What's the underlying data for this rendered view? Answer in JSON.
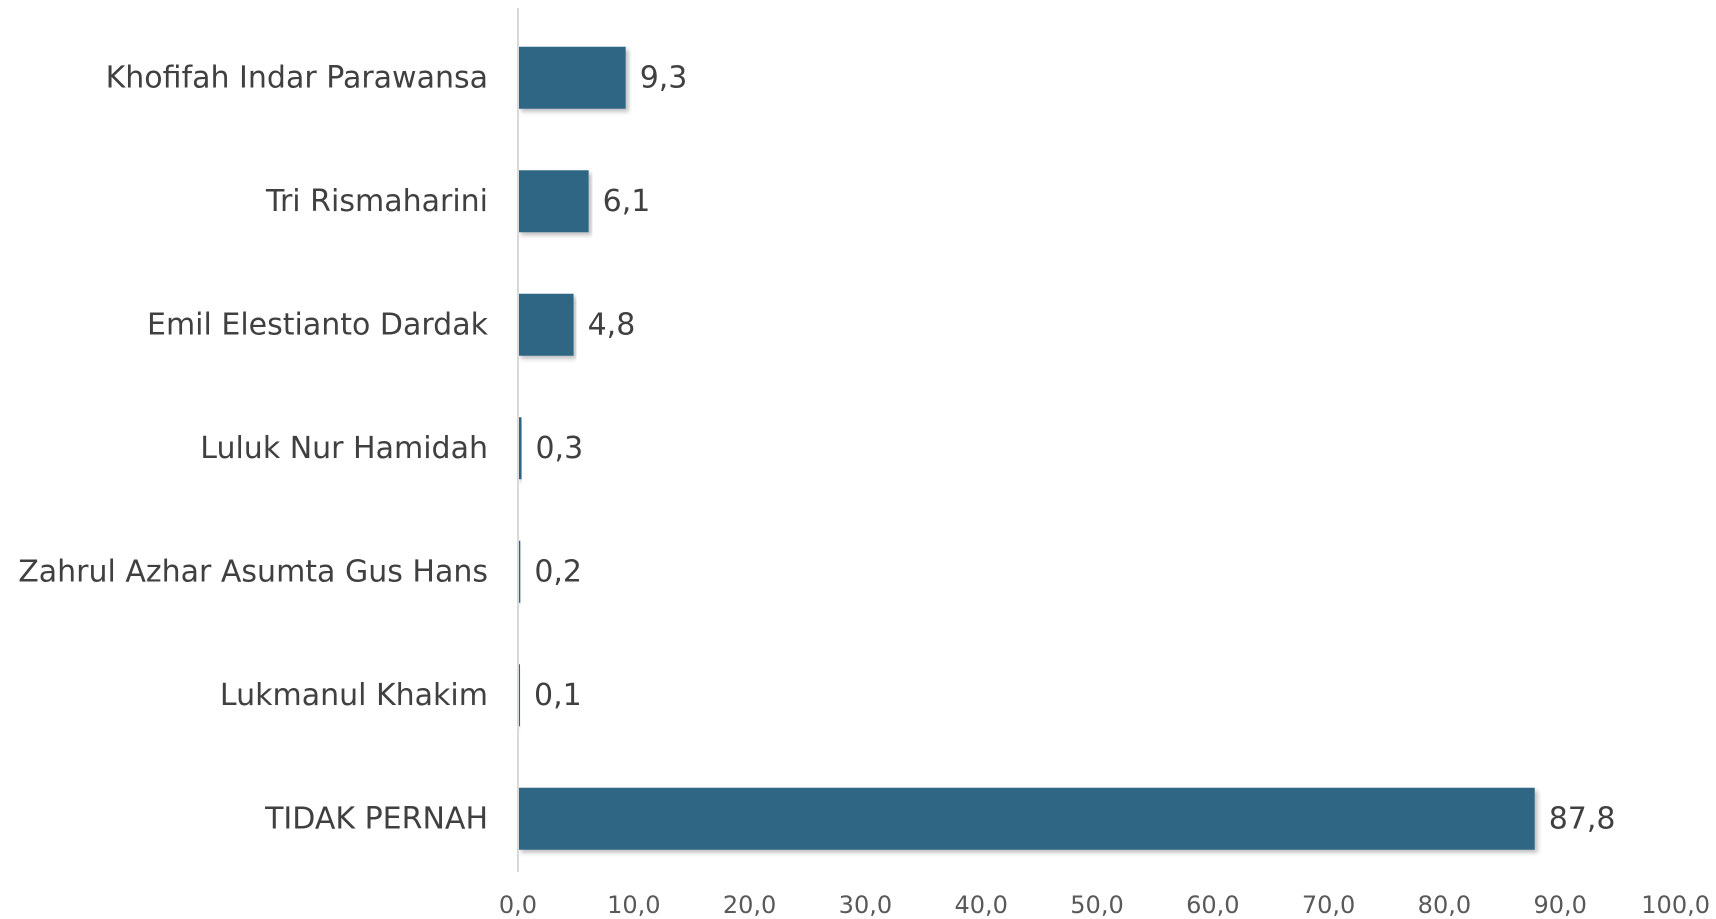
{
  "chart_data": {
    "type": "bar",
    "orientation": "horizontal",
    "title": "",
    "xlabel": "",
    "ylabel": "",
    "categories": [
      "Khofifah Indar Parawansa",
      "Tri Rismaharini",
      "Emil Elestianto Dardak",
      "Luluk Nur Hamidah",
      "Zahrul Azhar Asumta Gus Hans",
      "Lukmanul Khakim",
      "TIDAK PERNAH"
    ],
    "values": [
      9.3,
      6.1,
      4.8,
      0.3,
      0.2,
      0.1,
      87.8
    ],
    "value_labels": [
      "9,3",
      "6,1",
      "4,8",
      "0,3",
      "0,2",
      "0,1",
      "87,8"
    ],
    "xlim": [
      0,
      100
    ],
    "xticks": [
      0,
      10,
      20,
      30,
      40,
      50,
      60,
      70,
      80,
      90,
      100
    ],
    "xtick_labels": [
      "0,0",
      "10,0",
      "20,0",
      "30,0",
      "40,0",
      "50,0",
      "60,0",
      "70,0",
      "80,0",
      "90,0",
      "100,0"
    ],
    "grid": false,
    "legend": "none",
    "colors": {
      "bar": "#2f6683",
      "axis": "#d9d9d9",
      "text": "#404040",
      "tick_text": "#595959"
    }
  }
}
